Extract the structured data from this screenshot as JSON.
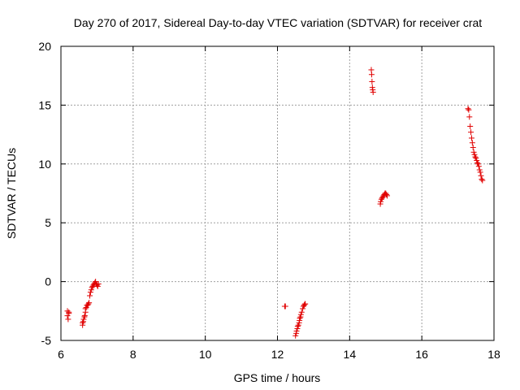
{
  "chart_data": {
    "type": "scatter",
    "title": "Day 270 of 2017, Sidereal Day-to-day VTEC variation (SDTVAR) for receiver crat",
    "xlabel": "GPS time / hours",
    "ylabel": "SDTVAR / TECUs",
    "xlim": [
      6,
      18
    ],
    "ylim": [
      -5,
      20
    ],
    "xticks": [
      "6",
      "8",
      "10",
      "12",
      "14",
      "16",
      "18"
    ],
    "yticks": [
      "-5",
      "0",
      "5",
      "10",
      "15",
      "20"
    ],
    "grid": true,
    "marker": "plus",
    "color": "#e00000",
    "points": [
      [
        6.18,
        -2.5
      ],
      [
        6.18,
        -2.9
      ],
      [
        6.2,
        -3.2
      ],
      [
        6.22,
        -2.7
      ],
      [
        6.22,
        -2.6
      ],
      [
        6.6,
        -3.7
      ],
      [
        6.6,
        -3.5
      ],
      [
        6.62,
        -3.4
      ],
      [
        6.63,
        -3.2
      ],
      [
        6.65,
        -3.0
      ],
      [
        6.66,
        -2.9
      ],
      [
        6.68,
        -2.6
      ],
      [
        6.68,
        -2.3
      ],
      [
        6.7,
        -2.2
      ],
      [
        6.72,
        -2.0
      ],
      [
        6.74,
        -2.0
      ],
      [
        6.76,
        -1.9
      ],
      [
        6.78,
        -1.8
      ],
      [
        6.8,
        -1.2
      ],
      [
        6.82,
        -0.9
      ],
      [
        6.84,
        -0.7
      ],
      [
        6.86,
        -0.5
      ],
      [
        6.88,
        -0.4
      ],
      [
        6.9,
        -0.3
      ],
      [
        6.92,
        -0.2
      ],
      [
        6.94,
        -0.1
      ],
      [
        6.96,
        0.0
      ],
      [
        6.98,
        -0.2
      ],
      [
        7.0,
        -0.3
      ],
      [
        7.02,
        -0.4
      ],
      [
        7.04,
        -0.2
      ],
      [
        12.2,
        -2.1
      ],
      [
        12.22,
        -2.1
      ],
      [
        12.5,
        -4.6
      ],
      [
        12.52,
        -4.4
      ],
      [
        12.53,
        -4.2
      ],
      [
        12.55,
        -4.0
      ],
      [
        12.56,
        -3.8
      ],
      [
        12.58,
        -3.7
      ],
      [
        12.6,
        -3.5
      ],
      [
        12.61,
        -3.3
      ],
      [
        12.62,
        -3.1
      ],
      [
        12.64,
        -3.0
      ],
      [
        12.65,
        -2.8
      ],
      [
        12.67,
        -2.6
      ],
      [
        12.7,
        -2.3
      ],
      [
        12.72,
        -2.1
      ],
      [
        12.74,
        -2.0
      ],
      [
        12.76,
        -1.9
      ],
      [
        12.77,
        -1.9
      ],
      [
        14.6,
        18.0
      ],
      [
        14.61,
        17.6
      ],
      [
        14.62,
        17.0
      ],
      [
        14.63,
        16.5
      ],
      [
        14.64,
        16.3
      ],
      [
        14.65,
        16.1
      ],
      [
        14.85,
        6.6
      ],
      [
        14.86,
        6.8
      ],
      [
        14.88,
        7.0
      ],
      [
        14.9,
        7.1
      ],
      [
        14.92,
        7.2
      ],
      [
        14.94,
        7.3
      ],
      [
        14.96,
        7.4
      ],
      [
        14.98,
        7.5
      ],
      [
        15.0,
        7.5
      ],
      [
        15.02,
        7.4
      ],
      [
        15.04,
        7.3
      ],
      [
        17.28,
        14.7
      ],
      [
        17.3,
        14.6
      ],
      [
        17.32,
        14.0
      ],
      [
        17.34,
        13.2
      ],
      [
        17.36,
        12.7
      ],
      [
        17.38,
        12.2
      ],
      [
        17.4,
        11.8
      ],
      [
        17.42,
        11.4
      ],
      [
        17.44,
        11.0
      ],
      [
        17.46,
        10.8
      ],
      [
        17.48,
        10.6
      ],
      [
        17.5,
        10.5
      ],
      [
        17.52,
        10.3
      ],
      [
        17.54,
        10.1
      ],
      [
        17.56,
        10.0
      ],
      [
        17.58,
        9.8
      ],
      [
        17.6,
        9.5
      ],
      [
        17.62,
        9.3
      ],
      [
        17.64,
        9.0
      ],
      [
        17.66,
        8.7
      ],
      [
        17.68,
        8.6
      ]
    ]
  }
}
